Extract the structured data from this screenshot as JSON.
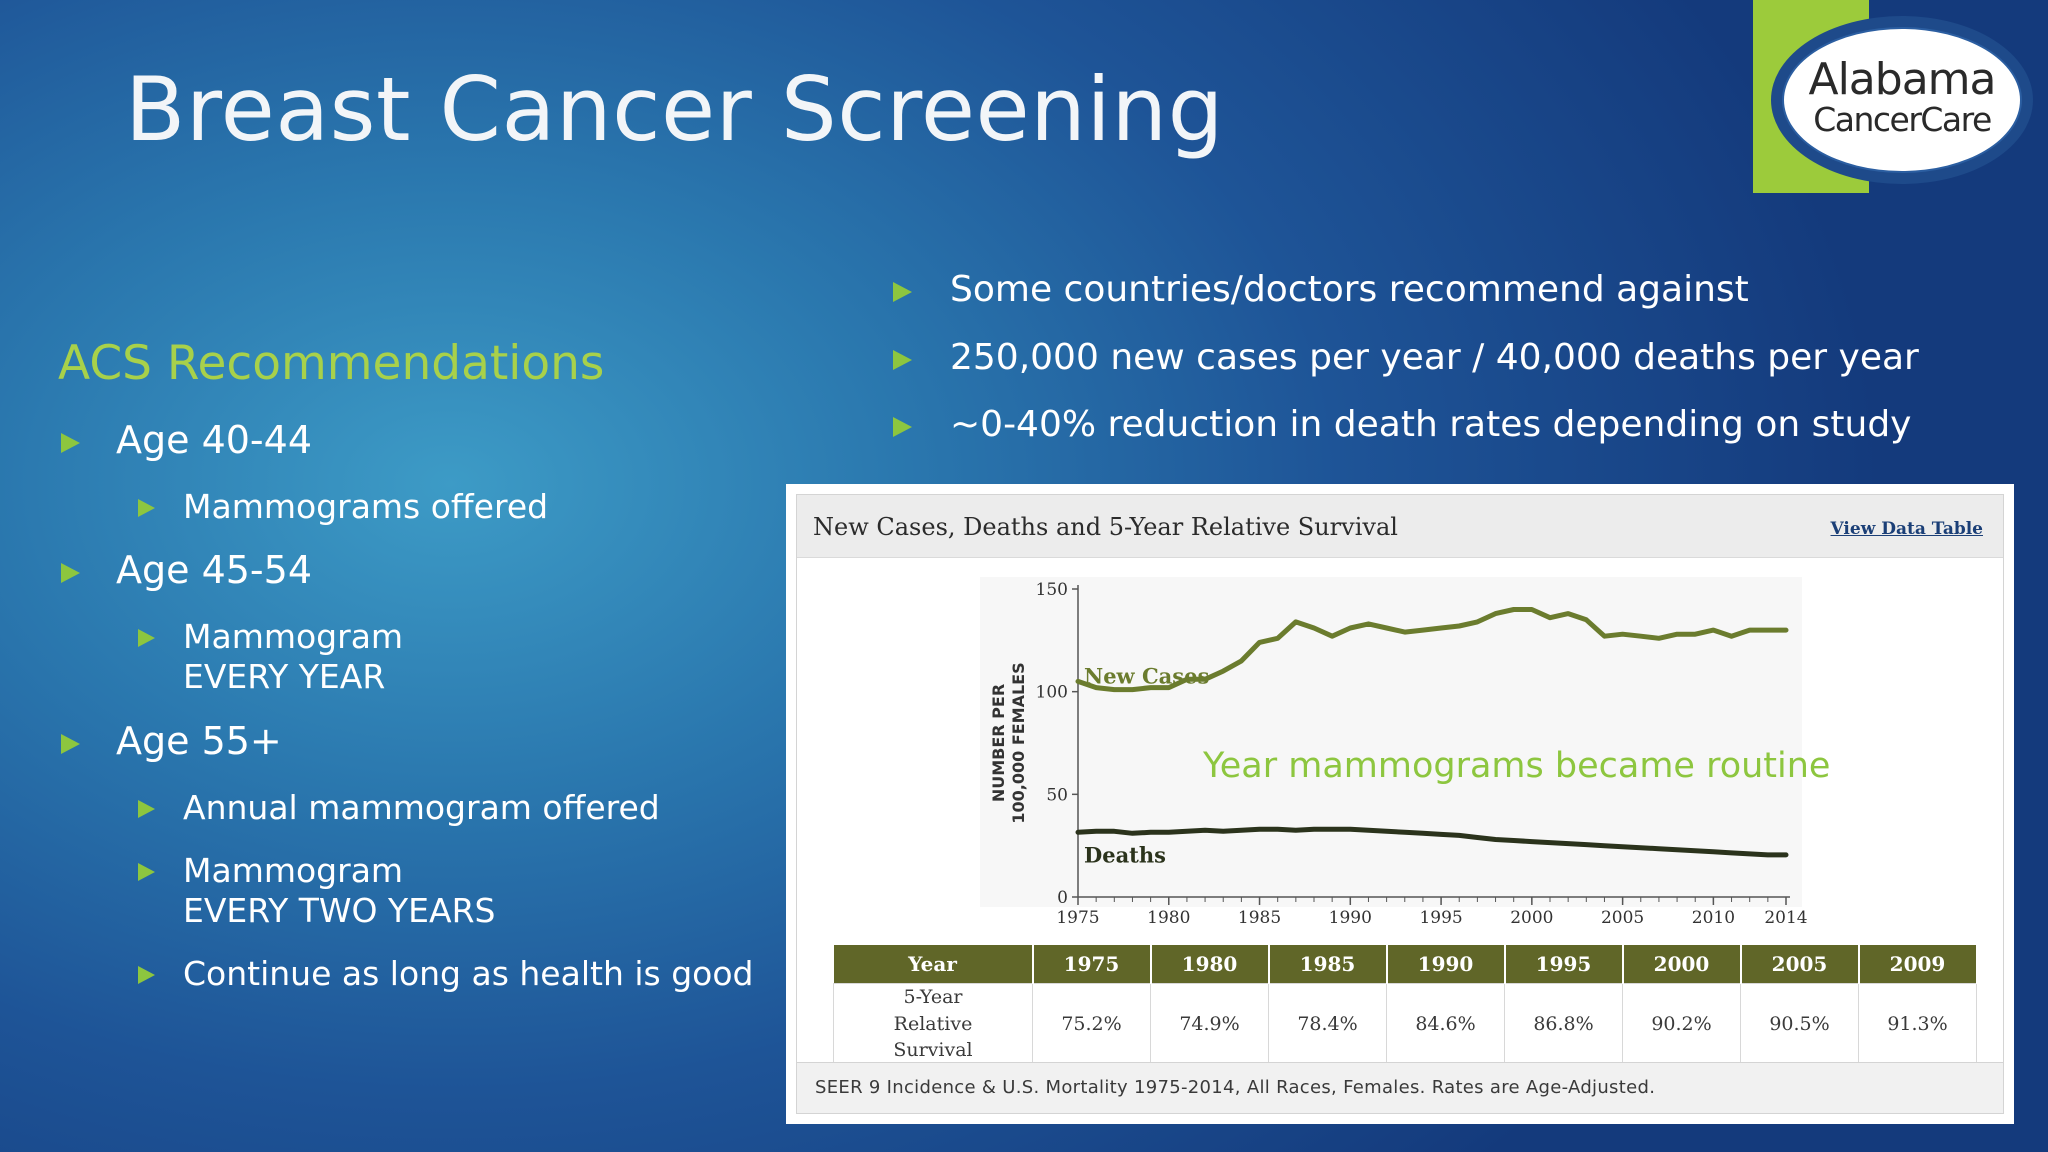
{
  "slide": {
    "title": "Breast Cancer Screening",
    "logo": {
      "line1": "Alabama",
      "line2": "CancerCare"
    }
  },
  "left": {
    "heading": "ACS Recommendations",
    "items": [
      {
        "text": "Age 40-44",
        "level": 1
      },
      {
        "text": "Mammograms offered",
        "level": 2
      },
      {
        "text": "Age 45-54",
        "level": 1
      },
      {
        "text": "Mammogram",
        "level": 2
      },
      {
        "text": "EVERY YEAR",
        "level": 2,
        "continuation": true
      },
      {
        "text": "Age 55+",
        "level": 1
      },
      {
        "text": "Annual mammogram offered",
        "level": 2
      },
      {
        "text": "Mammogram",
        "level": 2
      },
      {
        "text": "EVERY TWO YEARS",
        "level": 2,
        "continuation": true
      },
      {
        "text": "Continue as long as health is good",
        "level": 2
      }
    ]
  },
  "right": {
    "items": [
      "Some countries/doctors recommend against",
      "250,000 new cases per year / 40,000 deaths per year",
      "~0-40% reduction in death rates depending on study"
    ]
  },
  "panel": {
    "title": "New Cases, Deaths and 5-Year Relative Survival",
    "link": "View Data Table",
    "footnote": "SEER 9 Incidence & U.S. Mortality 1975-2014, All Races, Females. Rates are Age-Adjusted."
  },
  "chart_data": {
    "type": "line",
    "title": "New Cases, Deaths and 5-Year Relative Survival",
    "ylabel": "NUMBER PER 100,000 FEMALES",
    "xlabel": "",
    "ylim": [
      0,
      150
    ],
    "xlim": [
      1975,
      2014
    ],
    "yticks": [
      0,
      50,
      100,
      150
    ],
    "xticks": [
      1975,
      1980,
      1985,
      1990,
      1995,
      2000,
      2005,
      2010,
      2014
    ],
    "annotation": "Year mammograms became routine",
    "annotation_color": "#8dc63f",
    "series": [
      {
        "name": "New Cases",
        "color": "#6b7c2e",
        "x": [
          1975,
          1976,
          1977,
          1978,
          1979,
          1980,
          1981,
          1982,
          1983,
          1984,
          1985,
          1986,
          1987,
          1988,
          1989,
          1990,
          1991,
          1992,
          1993,
          1994,
          1995,
          1996,
          1997,
          1998,
          1999,
          2000,
          2001,
          2002,
          2003,
          2004,
          2005,
          2006,
          2007,
          2008,
          2009,
          2010,
          2011,
          2012,
          2013,
          2014
        ],
        "y": [
          105,
          102,
          101,
          101,
          102,
          102,
          106,
          106,
          110,
          115,
          124,
          126,
          134,
          131,
          127,
          131,
          133,
          131,
          129,
          130,
          131,
          132,
          134,
          138,
          140,
          140,
          136,
          138,
          135,
          127,
          128,
          127,
          126,
          128,
          128,
          130,
          127,
          130,
          130,
          130
        ]
      },
      {
        "name": "Deaths",
        "color": "#2b331c",
        "x": [
          1975,
          1976,
          1977,
          1978,
          1979,
          1980,
          1981,
          1982,
          1983,
          1984,
          1985,
          1986,
          1987,
          1988,
          1989,
          1990,
          1991,
          1992,
          1993,
          1994,
          1995,
          1996,
          1997,
          1998,
          1999,
          2000,
          2001,
          2002,
          2003,
          2004,
          2005,
          2006,
          2007,
          2008,
          2009,
          2010,
          2011,
          2012,
          2013,
          2014
        ],
        "y": [
          31.5,
          32,
          32,
          31,
          31.5,
          31.5,
          32,
          32.5,
          32,
          32.5,
          33,
          33,
          32.5,
          33,
          33,
          33,
          32.5,
          32,
          31.5,
          31,
          30.5,
          30,
          29,
          28,
          27.5,
          27,
          26.5,
          26,
          25.5,
          25,
          24.5,
          24,
          23.5,
          23,
          22.5,
          22,
          21.5,
          21,
          20.5,
          20.5
        ]
      }
    ],
    "survival_table": {
      "header_label": "Year",
      "row_label": "5-Year Relative Survival",
      "years": [
        "1975",
        "1980",
        "1985",
        "1990",
        "1995",
        "2000",
        "2005",
        "2009"
      ],
      "values": [
        "75.2%",
        "74.9%",
        "78.4%",
        "84.6%",
        "86.8%",
        "90.2%",
        "90.5%",
        "91.3%"
      ]
    }
  }
}
